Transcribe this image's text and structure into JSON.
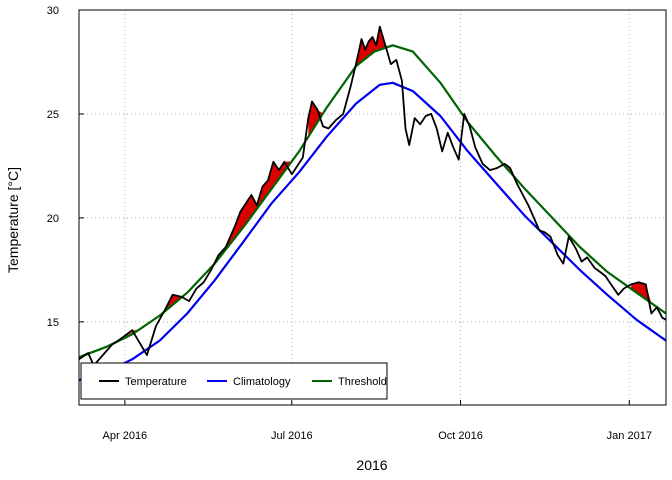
{
  "chart_data": {
    "type": "line",
    "xlabel": "2016",
    "ylabel": "Temperature [°C]",
    "x_domain": [
      "2016-03-07",
      "2017-01-21"
    ],
    "ylim": [
      11,
      30
    ],
    "x_ticks": [
      {
        "date": "2016-04-01",
        "label": "Apr 2016"
      },
      {
        "date": "2016-07-01",
        "label": "Jul 2016"
      },
      {
        "date": "2016-10-01",
        "label": "Oct 2016"
      },
      {
        "date": "2017-01-01",
        "label": "Jan 2017"
      }
    ],
    "y_ticks": [
      15,
      20,
      25,
      30
    ],
    "grid": true,
    "legend_position": "bottom-left",
    "events_fill": {
      "outer": "#f05050",
      "peak": "#dd0000"
    },
    "series": [
      {
        "name": "Temperature",
        "color": "#000000",
        "points": [
          [
            "2016-03-07",
            13.2
          ],
          [
            "2016-03-12",
            13.5
          ],
          [
            "2016-03-15",
            12.9
          ],
          [
            "2016-03-20",
            13.4
          ],
          [
            "2016-03-25",
            13.9
          ],
          [
            "2016-03-30",
            14.2
          ],
          [
            "2016-04-05",
            14.6
          ],
          [
            "2016-04-09",
            14.0
          ],
          [
            "2016-04-13",
            13.4
          ],
          [
            "2016-04-18",
            14.8
          ],
          [
            "2016-04-23",
            15.6
          ],
          [
            "2016-04-27",
            16.3
          ],
          [
            "2016-05-02",
            16.2
          ],
          [
            "2016-05-06",
            16.0
          ],
          [
            "2016-05-10",
            16.6
          ],
          [
            "2016-05-14",
            16.9
          ],
          [
            "2016-05-18",
            17.5
          ],
          [
            "2016-05-22",
            18.2
          ],
          [
            "2016-05-26",
            18.6
          ],
          [
            "2016-05-31",
            19.6
          ],
          [
            "2016-06-03",
            20.3
          ],
          [
            "2016-06-06",
            20.7
          ],
          [
            "2016-06-09",
            21.1
          ],
          [
            "2016-06-12",
            20.6
          ],
          [
            "2016-06-15",
            21.5
          ],
          [
            "2016-06-18",
            21.8
          ],
          [
            "2016-06-21",
            22.7
          ],
          [
            "2016-06-24",
            22.3
          ],
          [
            "2016-06-27",
            22.7
          ],
          [
            "2016-07-01",
            22.1
          ],
          [
            "2016-07-04",
            22.5
          ],
          [
            "2016-07-07",
            22.9
          ],
          [
            "2016-07-10",
            24.8
          ],
          [
            "2016-07-12",
            25.6
          ],
          [
            "2016-07-15",
            25.2
          ],
          [
            "2016-07-18",
            24.4
          ],
          [
            "2016-07-21",
            24.3
          ],
          [
            "2016-07-25",
            24.7
          ],
          [
            "2016-07-29",
            25.0
          ],
          [
            "2016-08-02",
            26.3
          ],
          [
            "2016-08-05",
            27.4
          ],
          [
            "2016-08-08",
            28.6
          ],
          [
            "2016-08-10",
            28.1
          ],
          [
            "2016-08-12",
            28.5
          ],
          [
            "2016-08-14",
            28.7
          ],
          [
            "2016-08-16",
            28.3
          ],
          [
            "2016-08-18",
            29.2
          ],
          [
            "2016-08-20",
            28.6
          ],
          [
            "2016-08-22",
            28.0
          ],
          [
            "2016-08-24",
            27.4
          ],
          [
            "2016-08-27",
            27.6
          ],
          [
            "2016-08-30",
            26.6
          ],
          [
            "2016-09-01",
            24.3
          ],
          [
            "2016-09-03",
            23.5
          ],
          [
            "2016-09-06",
            24.8
          ],
          [
            "2016-09-09",
            24.5
          ],
          [
            "2016-09-12",
            24.9
          ],
          [
            "2016-09-15",
            25.0
          ],
          [
            "2016-09-18",
            24.3
          ],
          [
            "2016-09-21",
            23.2
          ],
          [
            "2016-09-24",
            24.1
          ],
          [
            "2016-09-27",
            23.4
          ],
          [
            "2016-09-30",
            22.8
          ],
          [
            "2016-10-03",
            25.0
          ],
          [
            "2016-10-06",
            24.4
          ],
          [
            "2016-10-09",
            23.4
          ],
          [
            "2016-10-13",
            22.6
          ],
          [
            "2016-10-17",
            22.3
          ],
          [
            "2016-10-21",
            22.4
          ],
          [
            "2016-10-25",
            22.6
          ],
          [
            "2016-10-28",
            22.4
          ],
          [
            "2016-11-01",
            21.6
          ],
          [
            "2016-11-04",
            21.1
          ],
          [
            "2016-11-07",
            20.6
          ],
          [
            "2016-11-10",
            20.0
          ],
          [
            "2016-11-13",
            19.4
          ],
          [
            "2016-11-16",
            19.3
          ],
          [
            "2016-11-19",
            19.1
          ],
          [
            "2016-11-23",
            18.2
          ],
          [
            "2016-11-26",
            17.8
          ],
          [
            "2016-11-29",
            19.1
          ],
          [
            "2016-12-03",
            18.5
          ],
          [
            "2016-12-06",
            17.9
          ],
          [
            "2016-12-09",
            18.1
          ],
          [
            "2016-12-13",
            17.6
          ],
          [
            "2016-12-16",
            17.4
          ],
          [
            "2016-12-19",
            17.2
          ],
          [
            "2016-12-22",
            16.8
          ],
          [
            "2016-12-26",
            16.3
          ],
          [
            "2016-12-29",
            16.6
          ],
          [
            "2017-01-02",
            16.8
          ],
          [
            "2017-01-06",
            16.9
          ],
          [
            "2017-01-10",
            16.8
          ],
          [
            "2017-01-13",
            15.4
          ],
          [
            "2017-01-16",
            15.7
          ],
          [
            "2017-01-19",
            15.2
          ],
          [
            "2017-01-21",
            15.1
          ]
        ]
      },
      {
        "name": "Climatology",
        "color": "#0000ee",
        "points": [
          [
            "2016-03-07",
            12.2
          ],
          [
            "2016-03-22",
            12.6
          ],
          [
            "2016-04-05",
            13.2
          ],
          [
            "2016-04-20",
            14.1
          ],
          [
            "2016-05-05",
            15.4
          ],
          [
            "2016-05-20",
            17.0
          ],
          [
            "2016-06-05",
            18.9
          ],
          [
            "2016-06-20",
            20.7
          ],
          [
            "2016-07-05",
            22.2
          ],
          [
            "2016-07-20",
            23.9
          ],
          [
            "2016-08-05",
            25.5
          ],
          [
            "2016-08-18",
            26.4
          ],
          [
            "2016-08-25",
            26.5
          ],
          [
            "2016-09-05",
            26.1
          ],
          [
            "2016-09-20",
            24.9
          ],
          [
            "2016-10-05",
            23.2
          ],
          [
            "2016-10-20",
            21.7
          ],
          [
            "2016-11-05",
            20.1
          ],
          [
            "2016-11-20",
            18.8
          ],
          [
            "2016-12-05",
            17.5
          ],
          [
            "2016-12-20",
            16.3
          ],
          [
            "2017-01-05",
            15.1
          ],
          [
            "2017-01-21",
            14.1
          ]
        ]
      },
      {
        "name": "Threshold",
        "color": "#006400",
        "points": [
          [
            "2016-03-07",
            13.3
          ],
          [
            "2016-03-22",
            13.8
          ],
          [
            "2016-04-05",
            14.4
          ],
          [
            "2016-04-20",
            15.3
          ],
          [
            "2016-05-05",
            16.4
          ],
          [
            "2016-05-20",
            17.8
          ],
          [
            "2016-06-05",
            19.6
          ],
          [
            "2016-06-20",
            21.4
          ],
          [
            "2016-07-05",
            23.2
          ],
          [
            "2016-07-20",
            25.3
          ],
          [
            "2016-08-05",
            27.3
          ],
          [
            "2016-08-15",
            28.0
          ],
          [
            "2016-08-25",
            28.3
          ],
          [
            "2016-09-05",
            28.0
          ],
          [
            "2016-09-20",
            26.5
          ],
          [
            "2016-10-05",
            24.6
          ],
          [
            "2016-10-20",
            23.0
          ],
          [
            "2016-11-05",
            21.4
          ],
          [
            "2016-11-20",
            20.0
          ],
          [
            "2016-12-05",
            18.6
          ],
          [
            "2016-12-20",
            17.4
          ],
          [
            "2017-01-05",
            16.4
          ],
          [
            "2017-01-21",
            15.4
          ]
        ]
      }
    ]
  }
}
